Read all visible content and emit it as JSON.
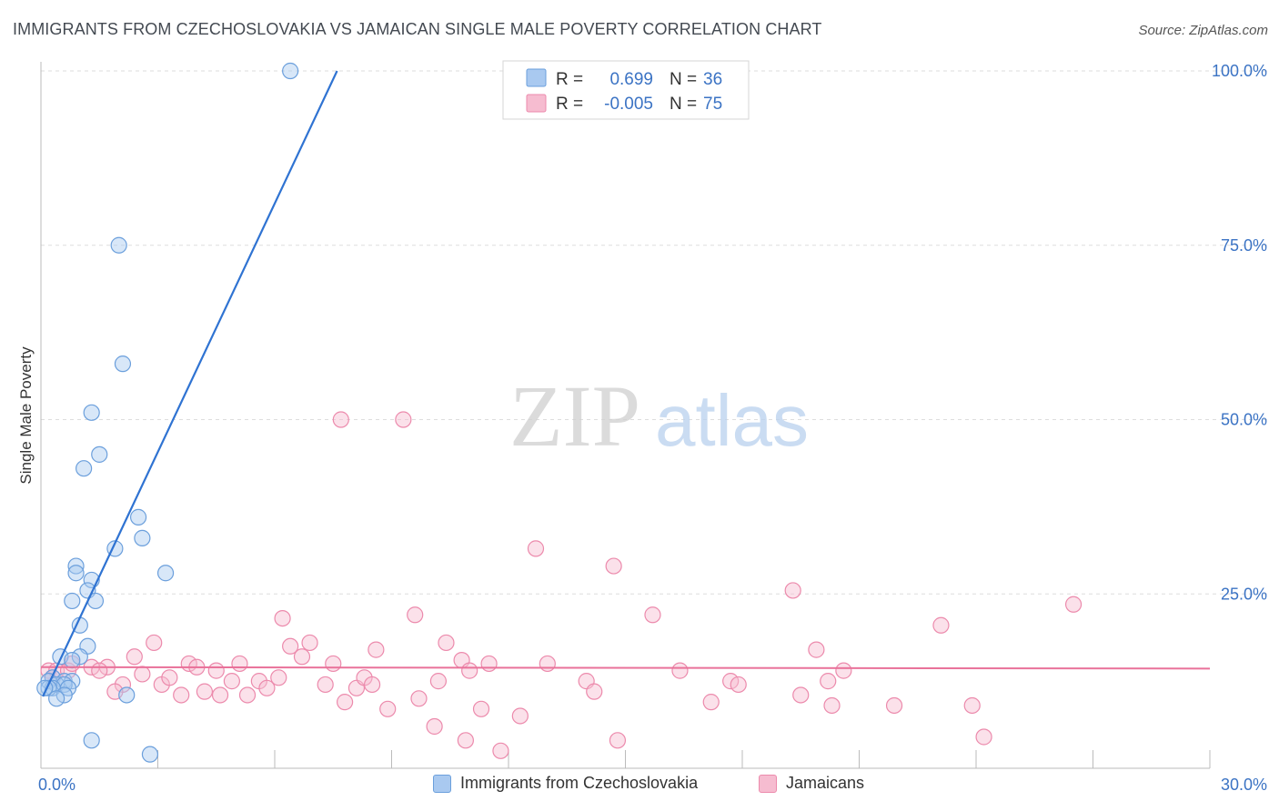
{
  "header": {
    "title": "IMMIGRANTS FROM CZECHOSLOVAKIA VS JAMAICAN SINGLE MALE POVERTY CORRELATION CHART",
    "source": "Source: ZipAtlas.com"
  },
  "watermark": {
    "zip": "ZIP",
    "atlas": "atlas"
  },
  "colors": {
    "blue_fill": "#a9c9f0",
    "blue_stroke": "#6b9fdc",
    "blue_line": "#2f73d2",
    "pink_fill": "#f6bcd0",
    "pink_stroke": "#ec8aac",
    "pink_line": "#e9729a",
    "axis_text": "#3b73c4",
    "grid": "#dddddd"
  },
  "legend_top": {
    "rows": [
      {
        "r_label": "R =",
        "r_value": "0.699",
        "n_label": "N =",
        "n_value": "36"
      },
      {
        "r_label": "R =",
        "r_value": "-0.005",
        "n_label": "N =",
        "n_value": "75"
      }
    ]
  },
  "legend_bottom": {
    "items": [
      {
        "label": "Immigrants from Czechoslovakia"
      },
      {
        "label": "Jamaicans"
      }
    ]
  },
  "chart_data": {
    "type": "scatter",
    "title": "IMMIGRANTS FROM CZECHOSLOVAKIA VS JAMAICAN SINGLE MALE POVERTY CORRELATION CHART",
    "xlabel": "",
    "ylabel": "Single Male Poverty",
    "xlim": [
      0,
      30
    ],
    "ylim": [
      0,
      103
    ],
    "x_tick_labels": [
      "0.0%",
      "30.0%"
    ],
    "y_ticks": [
      25,
      50,
      75,
      100
    ],
    "y_tick_labels": [
      "25.0%",
      "50.0%",
      "75.0%",
      "100.0%"
    ],
    "grid": true,
    "series": [
      {
        "name": "Immigrants from Czechoslovakia",
        "color": "blue",
        "R": 0.699,
        "N": 36,
        "trend": {
          "x0": 0.05,
          "y0": 10.3,
          "x1": 7.6,
          "y1": 100
        },
        "points": [
          [
            6.4,
            100
          ],
          [
            2.0,
            75
          ],
          [
            2.1,
            58
          ],
          [
            1.3,
            51
          ],
          [
            1.5,
            45
          ],
          [
            1.1,
            43
          ],
          [
            2.5,
            36
          ],
          [
            2.6,
            33
          ],
          [
            1.9,
            31.5
          ],
          [
            3.2,
            28
          ],
          [
            0.9,
            29
          ],
          [
            0.9,
            28
          ],
          [
            1.3,
            27
          ],
          [
            1.2,
            25.5
          ],
          [
            0.8,
            24
          ],
          [
            1.4,
            24
          ],
          [
            1.0,
            20.5
          ],
          [
            1.2,
            17.5
          ],
          [
            0.5,
            16
          ],
          [
            1.0,
            16
          ],
          [
            0.8,
            15.5
          ],
          [
            0.3,
            13
          ],
          [
            0.6,
            12.5
          ],
          [
            0.2,
            12.5
          ],
          [
            0.8,
            12.5
          ],
          [
            0.4,
            12
          ],
          [
            0.6,
            12
          ],
          [
            0.7,
            11.5
          ],
          [
            0.3,
            11.5
          ],
          [
            0.2,
            11.5
          ],
          [
            0.1,
            11.5
          ],
          [
            0.6,
            10.5
          ],
          [
            2.2,
            10.5
          ],
          [
            0.4,
            10
          ],
          [
            1.3,
            4
          ],
          [
            2.8,
            2
          ]
        ]
      },
      {
        "name": "Jamaicans",
        "color": "pink",
        "R": -0.005,
        "N": 75,
        "trend": {
          "x0": 0.0,
          "y0": 14.5,
          "x1": 30.0,
          "y1": 14.3
        },
        "points": [
          [
            0.2,
            14
          ],
          [
            0.3,
            13
          ],
          [
            0.4,
            14
          ],
          [
            0.7,
            14
          ],
          [
            0.8,
            15
          ],
          [
            1.3,
            14.5
          ],
          [
            1.7,
            14.5
          ],
          [
            1.5,
            14
          ],
          [
            2.1,
            12
          ],
          [
            1.9,
            11
          ],
          [
            2.4,
            16
          ],
          [
            2.6,
            13.5
          ],
          [
            2.9,
            18
          ],
          [
            3.1,
            12
          ],
          [
            3.3,
            13
          ],
          [
            3.6,
            10.5
          ],
          [
            3.8,
            15
          ],
          [
            4.0,
            14.5
          ],
          [
            4.2,
            11
          ],
          [
            4.5,
            14
          ],
          [
            4.6,
            10.5
          ],
          [
            4.9,
            12.5
          ],
          [
            5.1,
            15
          ],
          [
            5.3,
            10.5
          ],
          [
            5.6,
            12.5
          ],
          [
            5.8,
            11.5
          ],
          [
            6.1,
            13
          ],
          [
            6.2,
            21.5
          ],
          [
            6.4,
            17.5
          ],
          [
            6.7,
            16
          ],
          [
            6.9,
            18
          ],
          [
            7.3,
            12
          ],
          [
            7.5,
            15
          ],
          [
            7.7,
            50
          ],
          [
            7.8,
            9.5
          ],
          [
            8.1,
            11.5
          ],
          [
            8.3,
            13
          ],
          [
            8.5,
            12
          ],
          [
            8.6,
            17
          ],
          [
            8.9,
            8.5
          ],
          [
            9.3,
            50
          ],
          [
            9.6,
            22
          ],
          [
            9.7,
            10
          ],
          [
            10.1,
            6
          ],
          [
            10.2,
            12.5
          ],
          [
            10.4,
            18
          ],
          [
            10.8,
            15.5
          ],
          [
            11.0,
            14
          ],
          [
            11.3,
            8.5
          ],
          [
            11.5,
            15
          ],
          [
            10.9,
            4
          ],
          [
            11.8,
            2.5
          ],
          [
            12.3,
            7.5
          ],
          [
            12.7,
            31.5
          ],
          [
            13.0,
            15
          ],
          [
            14.0,
            12.5
          ],
          [
            14.2,
            11
          ],
          [
            14.7,
            29
          ],
          [
            14.8,
            4
          ],
          [
            15.7,
            22
          ],
          [
            16.4,
            14
          ],
          [
            17.2,
            9.5
          ],
          [
            17.7,
            12.5
          ],
          [
            17.9,
            12
          ],
          [
            19.3,
            25.5
          ],
          [
            19.5,
            10.5
          ],
          [
            19.9,
            17
          ],
          [
            20.2,
            12.5
          ],
          [
            20.3,
            9
          ],
          [
            20.6,
            14
          ],
          [
            21.9,
            9
          ],
          [
            23.1,
            20.5
          ],
          [
            23.9,
            9
          ],
          [
            24.2,
            4.5
          ],
          [
            26.5,
            23.5
          ]
        ]
      }
    ]
  }
}
